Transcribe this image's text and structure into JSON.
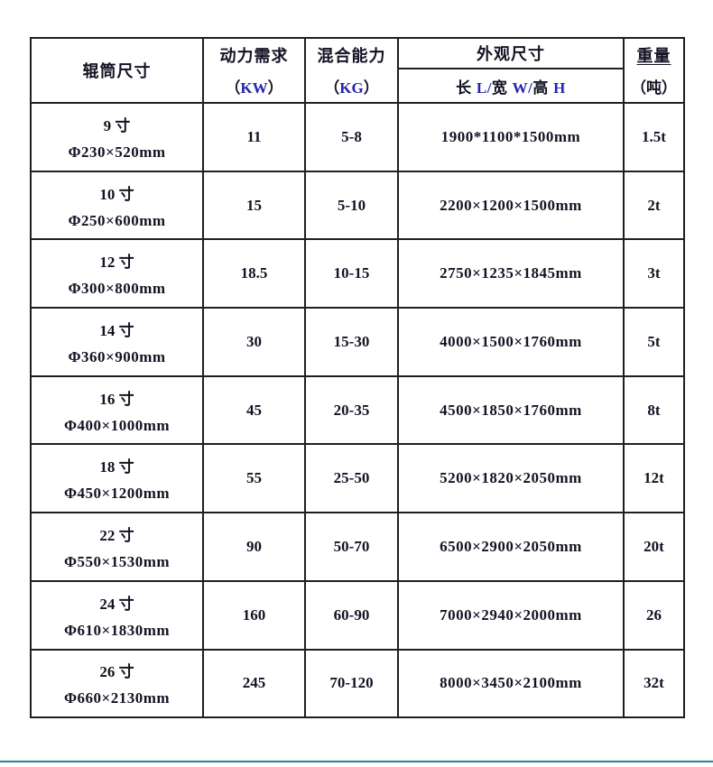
{
  "header": {
    "roller_size": "辊筒尺寸",
    "power": {
      "line1": "动力需求",
      "line2_parts": [
        {
          "t": "（",
          "blue": false
        },
        {
          "t": "KW",
          "blue": true
        },
        {
          "t": "）",
          "blue": false
        }
      ]
    },
    "capacity": {
      "line1": "混合能力",
      "line2_parts": [
        {
          "t": "（",
          "blue": false
        },
        {
          "t": "KG",
          "blue": true
        },
        {
          "t": "）",
          "blue": false
        }
      ]
    },
    "dimensions": {
      "title": "外观尺寸",
      "sub_parts": [
        {
          "t": "长 ",
          "blue": false
        },
        {
          "t": "L/",
          "blue": true
        },
        {
          "t": "宽 ",
          "blue": false
        },
        {
          "t": "W/",
          "blue": true
        },
        {
          "t": "高 ",
          "blue": false
        },
        {
          "t": "H",
          "blue": true
        }
      ]
    },
    "weight": {
      "line1": "重量",
      "line2": "（吨）"
    }
  },
  "rows": [
    {
      "size1": "9 寸",
      "size2": "Φ230×520mm",
      "power": "11",
      "capacity": "5-8",
      "dims": "1900*1100*1500mm",
      "weight": "1.5t"
    },
    {
      "size1": "10 寸",
      "size2": "Φ250×600mm",
      "power": "15",
      "capacity": "5-10",
      "dims": "2200×1200×1500mm",
      "weight": "2t"
    },
    {
      "size1": "12 寸",
      "size2": "Φ300×800mm",
      "power": "18.5",
      "capacity": "10-15",
      "dims": "2750×1235×1845mm",
      "weight": "3t"
    },
    {
      "size1": "14 寸",
      "size2": "Φ360×900mm",
      "power": "30",
      "capacity": "15-30",
      "dims": "4000×1500×1760mm",
      "weight": "5t"
    },
    {
      "size1": "16 寸",
      "size2": "Φ400×1000mm",
      "power": "45",
      "capacity": "20-35",
      "dims": "4500×1850×1760mm",
      "weight": "8t"
    },
    {
      "size1": "18 寸",
      "size2": "Φ450×1200mm",
      "power": "55",
      "capacity": "25-50",
      "dims": "5200×1820×2050mm",
      "weight": "12t"
    },
    {
      "size1": "22 寸",
      "size2": "Φ550×1530mm",
      "power": "90",
      "capacity": "50-70",
      "dims": "6500×2900×2050mm",
      "weight": "20t"
    },
    {
      "size1": "24 寸",
      "size2": "Φ610×1830mm",
      "power": "160",
      "capacity": "60-90",
      "dims": "7000×2940×2000mm",
      "weight": "26"
    },
    {
      "size1": "26 寸",
      "size2": "Φ660×2130mm",
      "power": "245",
      "capacity": "70-120",
      "dims": "8000×3450×2100mm",
      "weight": "32t"
    }
  ],
  "colors": {
    "border": "#1f1f1f",
    "text": "#131324",
    "latin_blue": "#2525b0",
    "divider_teal": "#3e7f8f",
    "divider_light": "#d9f1f7"
  }
}
